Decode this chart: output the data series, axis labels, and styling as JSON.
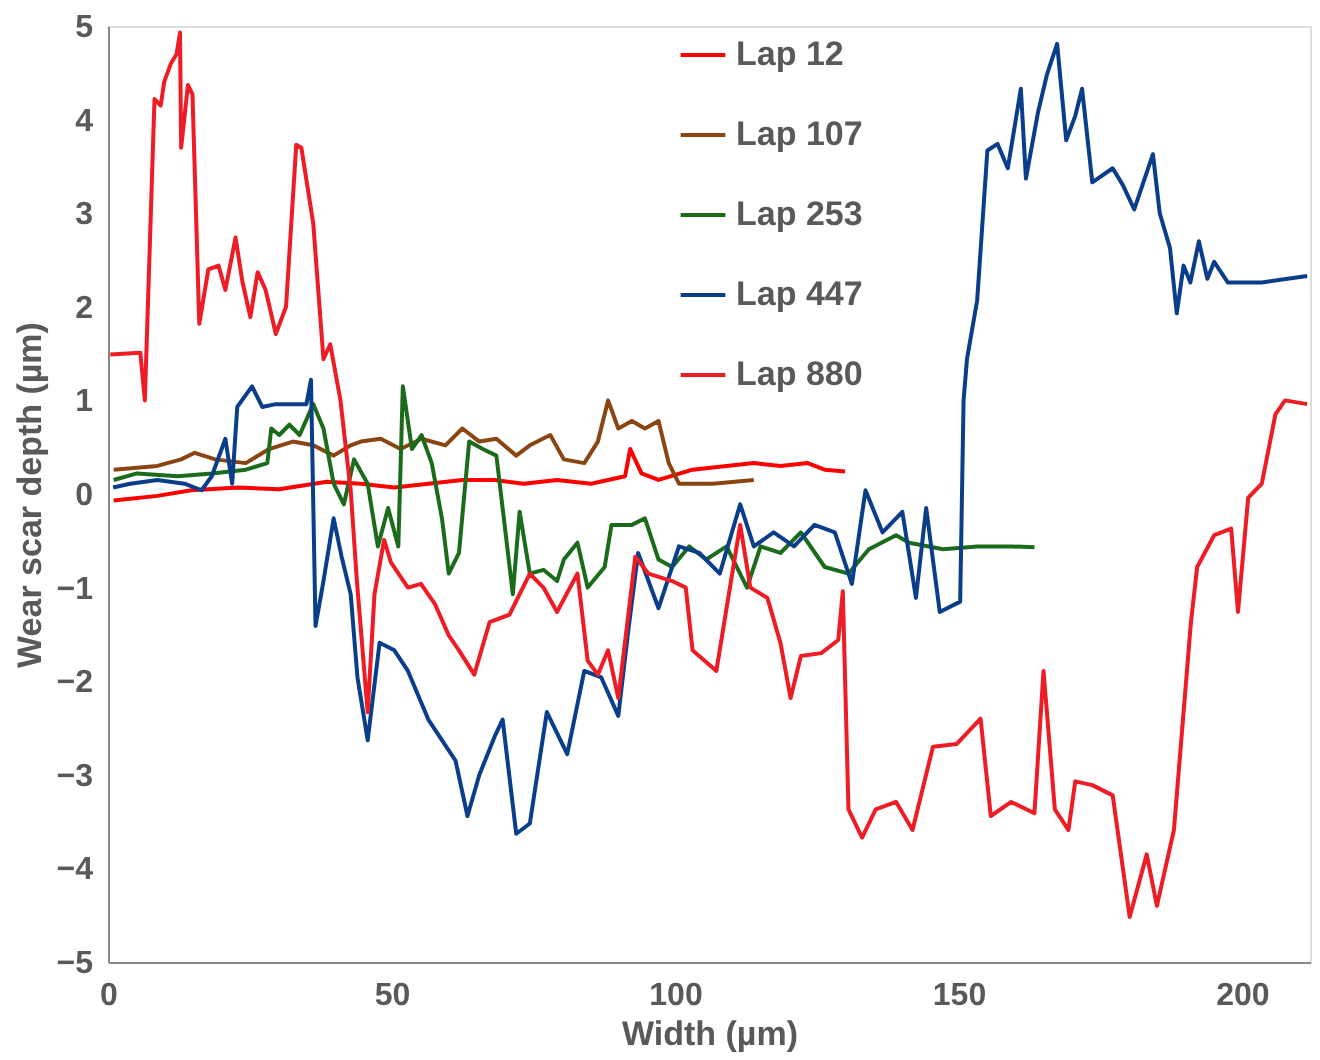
{
  "chart_data": {
    "type": "line",
    "xlabel": "Width (µm)",
    "ylabel": "Wear scar depth (µm)",
    "xlim": [
      0,
      212
    ],
    "xticks": [
      0,
      50,
      100,
      150,
      200
    ],
    "ylim": [
      -5,
      5
    ],
    "yticks": [
      -5,
      -4,
      -3,
      -2,
      -1,
      0,
      1,
      2,
      3,
      4,
      5
    ],
    "grid": false,
    "legend": "top",
    "marker": "none",
    "line_style": "solid",
    "series": [
      {
        "name": "Lap 12",
        "color": "#ff0000",
        "x": [
          1,
          8.7,
          14.7,
          23,
          30.2,
          38.6,
          44.6,
          50.5,
          56.5,
          62.5,
          68.2,
          73.3,
          79.2,
          85.2,
          91.2,
          92.1,
          94.1,
          97.1,
          103.1,
          109.1,
          113.9,
          118.6,
          123.4,
          126.4,
          130
        ],
        "values": [
          -0.07,
          -0.02,
          0.04,
          0.07,
          0.05,
          0.13,
          0.11,
          0.07,
          0.11,
          0.15,
          0.15,
          0.11,
          0.15,
          0.11,
          0.19,
          0.48,
          0.22,
          0.15,
          0.26,
          0.3,
          0.33,
          0.3,
          0.33,
          0.26,
          0.24
        ]
      },
      {
        "name": "Lap 107",
        "color": "#8b4513",
        "x": [
          1,
          8.7,
          12.9,
          15.3,
          18.9,
          24.3,
          28.4,
          32.6,
          36.2,
          39.8,
          42.8,
          44.6,
          48.1,
          51.6,
          55.3,
          59.5,
          62.5,
          65.5,
          68.5,
          72,
          74.4,
          78,
          80.4,
          84,
          86.4,
          88.2,
          90,
          92.4,
          94.7,
          97.1,
          98.9,
          100.7,
          106.7,
          113.9
        ],
        "values": [
          0.26,
          0.3,
          0.37,
          0.44,
          0.37,
          0.33,
          0.48,
          0.56,
          0.52,
          0.41,
          0.52,
          0.56,
          0.59,
          0.48,
          0.59,
          0.52,
          0.7,
          0.56,
          0.59,
          0.41,
          0.52,
          0.63,
          0.37,
          0.33,
          0.56,
          1.0,
          0.7,
          0.78,
          0.7,
          0.78,
          0.33,
          0.11,
          0.11,
          0.15
        ]
      },
      {
        "name": "Lap 253",
        "color": "#1a6b1a",
        "x": [
          1,
          5.1,
          12.3,
          18.3,
          24.3,
          28.1,
          28.8,
          30.2,
          32,
          33.8,
          36.2,
          38,
          39.8,
          41.6,
          43.4,
          45.8,
          47.6,
          49.4,
          51.2,
          52,
          53.6,
          55.3,
          57.1,
          58.9,
          60.1,
          61.9,
          63.7,
          66.1,
          68.5,
          71.4,
          72.6,
          74.4,
          76.8,
          79.2,
          80.4,
          82.8,
          84.6,
          87.6,
          88.8,
          92.4,
          94.7,
          97.1,
          99.5,
          102.5,
          105.5,
          109.1,
          112.7,
          115.1,
          118.6,
          122.2,
          126.4,
          130.6,
          134.2,
          139,
          141.3,
          147.3,
          153.3,
          159.3,
          163.4
        ],
        "values": [
          0.15,
          0.22,
          0.19,
          0.22,
          0.26,
          0.33,
          0.7,
          0.63,
          0.74,
          0.63,
          0.96,
          0.7,
          0.11,
          -0.11,
          0.37,
          0.11,
          -0.56,
          -0.15,
          -0.56,
          1.15,
          0.48,
          0.63,
          0.33,
          -0.26,
          -0.85,
          -0.63,
          0.56,
          0.48,
          0.41,
          -1.07,
          -0.19,
          -0.85,
          -0.81,
          -0.93,
          -0.7,
          -0.52,
          -1.0,
          -0.78,
          -0.33,
          -0.33,
          -0.26,
          -0.7,
          -0.78,
          -0.56,
          -0.7,
          -0.56,
          -1.0,
          -0.56,
          -0.63,
          -0.41,
          -0.78,
          -0.85,
          -0.59,
          -0.44,
          -0.52,
          -0.59,
          -0.56,
          -0.56,
          -0.57
        ]
      },
      {
        "name": "Lap 447",
        "color": "#0a3d8a",
        "x": [
          0.9,
          3.9,
          8.7,
          13.5,
          16.5,
          18.3,
          20.7,
          21.9,
          22.8,
          25.4,
          27.2,
          29.6,
          32.6,
          35,
          35.8,
          36.6,
          38,
          39.8,
          41.2,
          42.8,
          44,
          45.8,
          47.9,
          50.5,
          52.9,
          56.5,
          58.9,
          61.3,
          63.4,
          65.5,
          68.2,
          69.6,
          72,
          74.4,
          77.4,
          81,
          84,
          87,
          90,
          91.8,
          93.5,
          97.1,
          100.7,
          104.3,
          107.9,
          111.5,
          113.9,
          117.4,
          121,
          124.6,
          128.2,
          131.2,
          133.6,
          136.6,
          140.1,
          142.5,
          144.3,
          146.7,
          150.3,
          150.9,
          151.5,
          153.3,
          155.1,
          156.9,
          158.7,
          161,
          161.9,
          164,
          165.6,
          167.4,
          169,
          170.6,
          171.8,
          173.6,
          177.2,
          179,
          181,
          184.3,
          185.5,
          187.3,
          188.5,
          189.7,
          190.9,
          192.4,
          193.9,
          195.1,
          197.5,
          203.5,
          211.5
        ],
        "values": [
          0.07,
          0.11,
          0.15,
          0.11,
          0.04,
          0.19,
          0.59,
          0.11,
          0.93,
          1.15,
          0.93,
          0.96,
          0.96,
          0.96,
          1.22,
          -1.41,
          -0.93,
          -0.26,
          -0.67,
          -1.07,
          -1.96,
          -2.63,
          -1.59,
          -1.67,
          -1.89,
          -2.41,
          -2.63,
          -2.85,
          -3.44,
          -3.0,
          -2.59,
          -2.41,
          -3.63,
          -3.52,
          -2.33,
          -2.78,
          -1.89,
          -1.96,
          -2.37,
          -1.44,
          -0.63,
          -1.22,
          -0.56,
          -0.63,
          -0.85,
          -0.11,
          -0.56,
          -0.41,
          -0.56,
          -0.33,
          -0.41,
          -0.96,
          0.04,
          -0.41,
          -0.19,
          -1.11,
          -0.15,
          -1.26,
          -1.15,
          1.0,
          1.44,
          2.07,
          3.67,
          3.74,
          3.48,
          4.33,
          3.37,
          4.07,
          4.48,
          4.81,
          3.78,
          4.04,
          4.33,
          3.33,
          3.48,
          3.3,
          3.04,
          3.63,
          3.0,
          2.63,
          1.93,
          2.44,
          2.26,
          2.7,
          2.3,
          2.48,
          2.26,
          2.26,
          2.33
        ]
      },
      {
        "name": "Lap 880",
        "color": "#ee1c25",
        "x": [
          0.4,
          5.7,
          6.5,
          8.2,
          9.3,
          9.9,
          11.1,
          12.1,
          12.7,
          12.9,
          14.1,
          14.9,
          16.1,
          17.7,
          19.5,
          20.7,
          22.5,
          23.7,
          25.1,
          26.4,
          27.8,
          29.6,
          31.4,
          33.2,
          34.1,
          36.2,
          38,
          39.2,
          41,
          42.8,
          43.9,
          45.8,
          47,
          48.7,
          49.9,
          52.9,
          55.2,
          57.7,
          60.1,
          61.9,
          64.6,
          67.3,
          70.8,
          74.4,
          76.8,
          79.2,
          82.8,
          84.6,
          86.4,
          88.2,
          90,
          93,
          95.3,
          99.5,
          101.9,
          103.1,
          107.3,
          109.1,
          111.5,
          113.3,
          116.3,
          118.6,
          120.4,
          122.2,
          125.8,
          128.8,
          129.6,
          130.6,
          133,
          135.4,
          139,
          141.9,
          145.5,
          149.7,
          153.9,
          155.7,
          159.3,
          163.4,
          165,
          167,
          169.4,
          170.6,
          173.6,
          177.2,
          180.2,
          183.2,
          185,
          188,
          191,
          192.1,
          195.1,
          198.1,
          199.3,
          201.1,
          203.5,
          205.9,
          207.6,
          211.5
        ],
        "values": [
          1.49,
          1.51,
          1.0,
          4.22,
          4.15,
          4.4,
          4.6,
          4.7,
          4.93,
          3.7,
          4.37,
          4.27,
          1.82,
          2.4,
          2.44,
          2.18,
          2.74,
          2.27,
          1.89,
          2.37,
          2.18,
          1.71,
          2.0,
          3.73,
          3.7,
          2.89,
          1.44,
          1.6,
          1.0,
          0.04,
          -0.93,
          -2.33,
          -1.07,
          -0.49,
          -0.73,
          -1.0,
          -0.96,
          -1.18,
          -1.51,
          -1.67,
          -1.93,
          -1.37,
          -1.29,
          -0.85,
          -1.0,
          -1.26,
          -0.85,
          -1.78,
          -1.93,
          -1.67,
          -2.18,
          -0.67,
          -0.85,
          -0.93,
          -1.0,
          -1.67,
          -1.89,
          -1.22,
          -0.33,
          -1.0,
          -1.11,
          -1.59,
          -2.18,
          -1.73,
          -1.7,
          -1.56,
          -1.04,
          -3.37,
          -3.67,
          -3.37,
          -3.29,
          -3.59,
          -2.7,
          -2.67,
          -2.4,
          -3.44,
          -3.29,
          -3.41,
          -1.89,
          -3.37,
          -3.59,
          -3.07,
          -3.11,
          -3.22,
          -4.52,
          -3.85,
          -4.4,
          -3.59,
          -1.37,
          -0.78,
          -0.44,
          -0.37,
          -1.26,
          -0.04,
          0.11,
          0.85,
          1.0,
          0.96
        ]
      }
    ]
  }
}
